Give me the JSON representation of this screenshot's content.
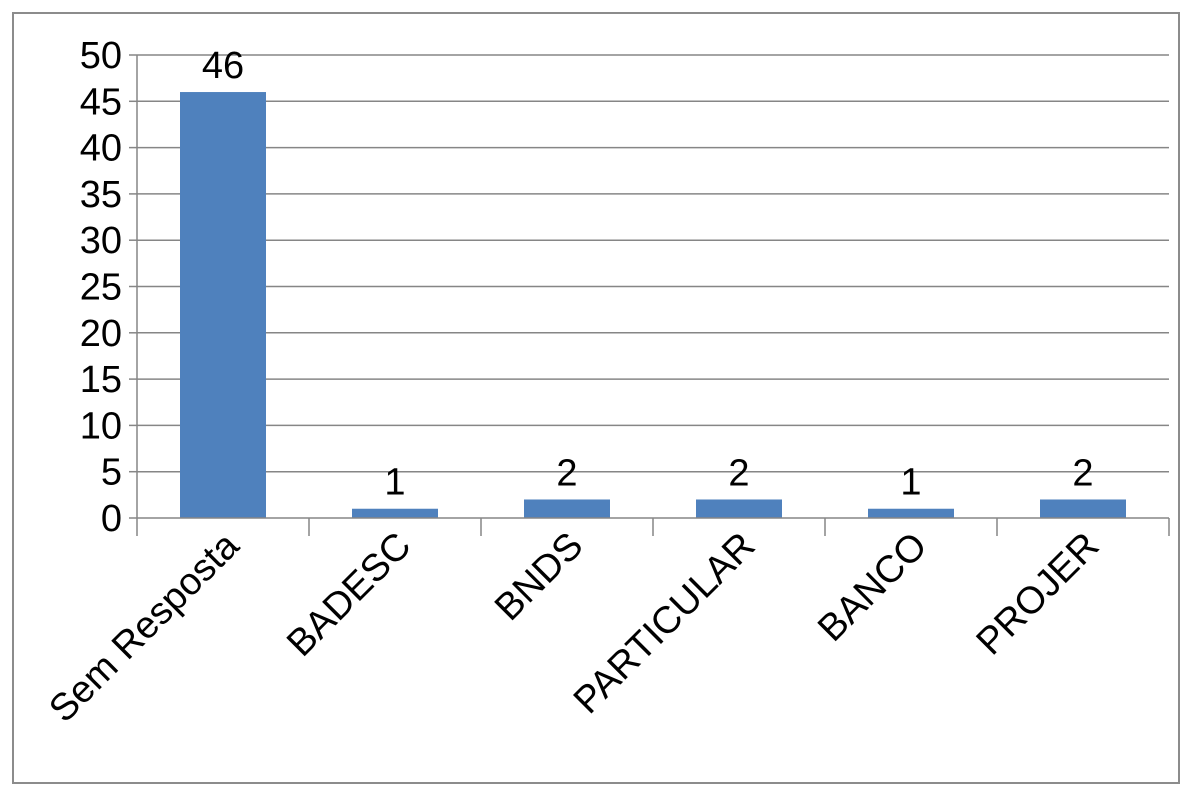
{
  "chart_data": {
    "type": "bar",
    "categories": [
      "Sem Resposta",
      "BADESC",
      "BNDS",
      "PARTICULAR",
      "BANCO",
      "PROJER"
    ],
    "values": [
      46,
      1,
      2,
      2,
      1,
      2
    ],
    "data_labels": [
      "46",
      "1",
      "2",
      "2",
      "1",
      "2"
    ],
    "y_ticks": [
      0,
      5,
      10,
      15,
      20,
      25,
      30,
      35,
      40,
      45,
      50
    ],
    "ylim": [
      0,
      50
    ],
    "grid": true,
    "legend": "none",
    "bar_color": "#4f81bd",
    "grid_color": "#868686",
    "axis_color": "#868686"
  }
}
